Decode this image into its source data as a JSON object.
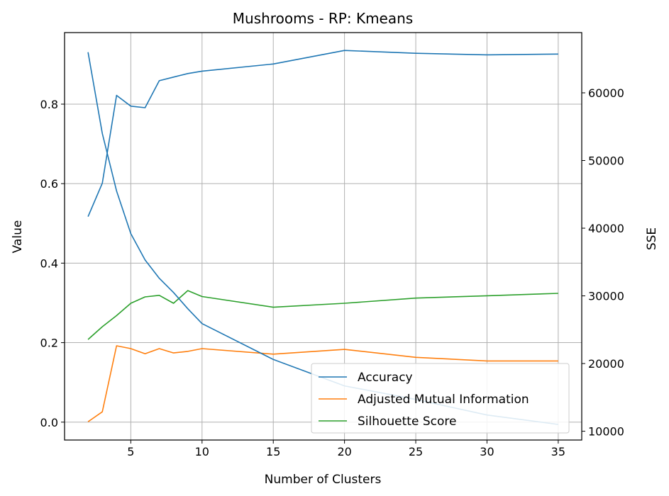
{
  "chart_data": {
    "type": "line",
    "title": "Mushrooms - RP: Kmeans",
    "xlabel": "Number of Clusters",
    "ylabel": "Value",
    "y2label": "SSE",
    "xlim": [
      0.35,
      36.65
    ],
    "ylim": [
      -0.045,
      0.98
    ],
    "y2lim": [
      8700,
      68900
    ],
    "xticks": [
      5,
      10,
      15,
      20,
      25,
      30,
      35
    ],
    "yticks": [
      0.0,
      0.2,
      0.4,
      0.6,
      0.8
    ],
    "ytick_labels": [
      "0.0",
      "0.2",
      "0.4",
      "0.6",
      "0.8"
    ],
    "y2ticks": [
      10000,
      20000,
      30000,
      40000,
      50000,
      60000
    ],
    "grid": true,
    "legend_position": "lower-right",
    "colors": {
      "blue": "#1f77b4",
      "orange": "#ff7f0e",
      "green": "#2ca02c",
      "grid": "#b0b0b0"
    },
    "series": [
      {
        "name": "Accuracy",
        "axis": "left",
        "color": "#1f77b4",
        "x": [
          2,
          3,
          4,
          5,
          6,
          7,
          8,
          9,
          10,
          15,
          20,
          25,
          30,
          35
        ],
        "y": [
          0.517,
          0.601,
          0.822,
          0.795,
          0.791,
          0.859,
          0.868,
          0.877,
          0.883,
          0.901,
          0.935,
          0.928,
          0.924,
          0.926
        ]
      },
      {
        "name": "Adjusted Mutual Information",
        "axis": "left",
        "color": "#ff7f0e",
        "x": [
          2,
          3,
          4,
          5,
          6,
          7,
          8,
          9,
          10,
          15,
          20,
          25,
          30,
          35
        ],
        "y": [
          0.001,
          0.026,
          0.192,
          0.185,
          0.172,
          0.185,
          0.174,
          0.178,
          0.185,
          0.171,
          0.183,
          0.163,
          0.154,
          0.154
        ]
      },
      {
        "name": "Silhouette Score",
        "axis": "left",
        "color": "#2ca02c",
        "x": [
          2,
          3,
          4,
          5,
          6,
          7,
          8,
          9,
          10,
          15,
          20,
          25,
          30,
          35
        ],
        "y": [
          0.208,
          0.24,
          0.268,
          0.299,
          0.315,
          0.319,
          0.299,
          0.331,
          0.316,
          0.289,
          0.299,
          0.312,
          0.318,
          0.324
        ]
      },
      {
        "name": "",
        "axis": "right",
        "color": "#1f77b4",
        "x": [
          2,
          3,
          4,
          5,
          6,
          7,
          8,
          9,
          10,
          15,
          20,
          25,
          30,
          35
        ],
        "y": [
          66000,
          54000,
          45500,
          39200,
          35300,
          32600,
          30500,
          28100,
          25900,
          20600,
          16700,
          14700,
          12400,
          11000
        ]
      }
    ],
    "legend": [
      "Accuracy",
      "Adjusted Mutual Information",
      "Silhouette Score"
    ]
  }
}
